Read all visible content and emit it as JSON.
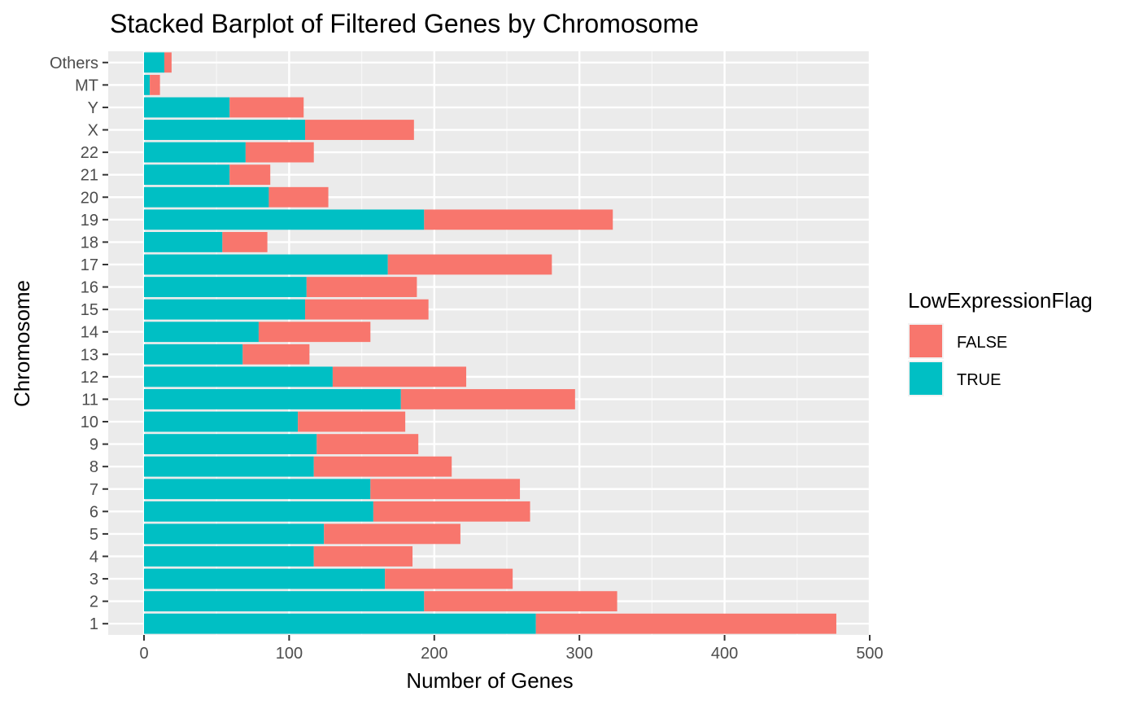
{
  "chart_data": {
    "type": "bar",
    "orientation": "horizontal",
    "stacked": true,
    "title": "Stacked Barplot of Filtered Genes by Chromosome",
    "xlabel": "Number of Genes",
    "ylabel": "Chromosome",
    "xlim": [
      0,
      500
    ],
    "xticks": [
      0,
      100,
      200,
      300,
      400,
      500
    ],
    "grid": true,
    "categories": [
      "1",
      "2",
      "3",
      "4",
      "5",
      "6",
      "7",
      "8",
      "9",
      "10",
      "11",
      "12",
      "13",
      "14",
      "15",
      "16",
      "17",
      "18",
      "19",
      "20",
      "21",
      "22",
      "X",
      "Y",
      "MT",
      "Others"
    ],
    "series": [
      {
        "name": "TRUE",
        "color": "#00BFC4",
        "values": [
          270,
          193,
          166,
          117,
          124,
          158,
          156,
          117,
          119,
          106,
          177,
          130,
          68,
          79,
          111,
          112,
          168,
          54,
          193,
          86,
          59,
          70,
          111,
          59,
          4,
          14
        ]
      },
      {
        "name": "FALSE",
        "color": "#F8766D",
        "values": [
          207,
          133,
          88,
          68,
          94,
          108,
          103,
          95,
          70,
          74,
          120,
          92,
          46,
          77,
          85,
          76,
          113,
          31,
          130,
          41,
          28,
          47,
          75,
          51,
          7,
          5
        ]
      }
    ],
    "legend": {
      "title": "LowExpressionFlag",
      "position": "right",
      "items": [
        {
          "label": "FALSE",
          "color": "#F8766D"
        },
        {
          "label": "TRUE",
          "color": "#00BFC4"
        }
      ]
    },
    "background": "#EBEBEB"
  }
}
